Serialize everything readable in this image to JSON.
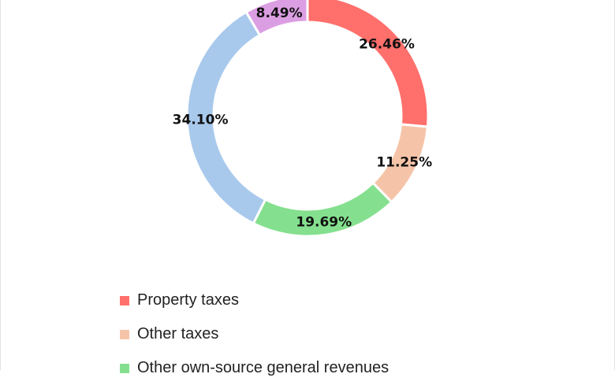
{
  "chart_data": {
    "type": "pie",
    "variant": "donut",
    "start": "top, clockwise",
    "slices": [
      {
        "name": "Property taxes",
        "value": 26.46,
        "label": "26.46%",
        "color": "#FF6F6B"
      },
      {
        "name": "Other taxes",
        "value": 11.25,
        "label": "11.25%",
        "color": "#F5C4A8"
      },
      {
        "name": "Other own-source general revenues",
        "value": 19.69,
        "label": "19.69%",
        "color": "#84E08E"
      },
      {
        "name": "",
        "value": 34.1,
        "label": "34.10%",
        "color": "#A8C9EC"
      },
      {
        "name": "",
        "value": 8.49,
        "label": "8.49%",
        "color": "#DC9EE2"
      }
    ],
    "legend": {
      "placement": "bottom",
      "entries": [
        "Property taxes",
        "Other taxes",
        "Other own-source general revenues"
      ]
    }
  }
}
